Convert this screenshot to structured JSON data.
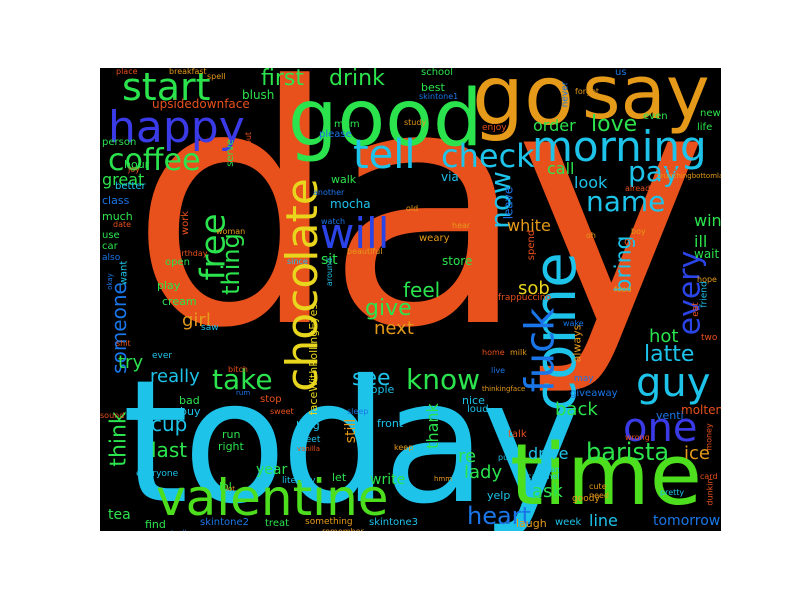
{
  "word_cloud": {
    "words": [
      {
        "text": "day",
        "color": "#e8501c"
      },
      {
        "text": "today",
        "color": "#1ec3ea"
      },
      {
        "text": "time",
        "color": "#4ddf1e"
      },
      {
        "text": "good",
        "color": "#2be34d"
      },
      {
        "text": "go",
        "color": "#e69a1a"
      },
      {
        "text": "say",
        "color": "#e69a1a"
      },
      {
        "text": "valentine",
        "color": "#4ddf1e"
      },
      {
        "text": "come",
        "color": "#1ec3ea"
      },
      {
        "text": "chocolate",
        "color": "#e8d51e"
      },
      {
        "text": "happy",
        "color": "#3a3ae6"
      },
      {
        "text": "start",
        "color": "#2be34d"
      },
      {
        "text": "morning",
        "color": "#1ec3ea"
      },
      {
        "text": "tell",
        "color": "#1ec3ea"
      },
      {
        "text": "check",
        "color": "#1ec3ea"
      },
      {
        "text": "will",
        "color": "#2a44e8"
      },
      {
        "text": "coffee",
        "color": "#2be34d"
      },
      {
        "text": "fuck",
        "color": "#1a76e8"
      },
      {
        "text": "guy",
        "color": "#1ec3ea"
      },
      {
        "text": "one",
        "color": "#3a3ae6"
      },
      {
        "text": "free",
        "color": "#2be34d"
      },
      {
        "text": "pay",
        "color": "#1ec3ea"
      },
      {
        "text": "name",
        "color": "#1ec3ea"
      },
      {
        "text": "now",
        "color": "#1ec3ea"
      },
      {
        "text": "every",
        "color": "#2a44e8"
      },
      {
        "text": "take",
        "color": "#2be34d"
      },
      {
        "text": "know",
        "color": "#2be34d"
      },
      {
        "text": "barista",
        "color": "#2be34d"
      },
      {
        "text": "heart",
        "color": "#1a76e8"
      },
      {
        "text": "give",
        "color": "#2be34d"
      },
      {
        "text": "thing",
        "color": "#2be34d"
      },
      {
        "text": "first",
        "color": "#2be34d"
      },
      {
        "text": "drink",
        "color": "#2be34d"
      },
      {
        "text": "bring",
        "color": "#1ec3ea"
      },
      {
        "text": "latte",
        "color": "#1ec3ea"
      },
      {
        "text": "love",
        "color": "#2be34d"
      },
      {
        "text": "feel",
        "color": "#2be34d"
      },
      {
        "text": "sob",
        "color": "#e8d51e"
      },
      {
        "text": "girl",
        "color": "#e69a1a"
      },
      {
        "text": "next",
        "color": "#e69a1a"
      },
      {
        "text": "see",
        "color": "#1ec3ea"
      },
      {
        "text": "cup",
        "color": "#1ec3ea"
      },
      {
        "text": "last",
        "color": "#2be34d"
      },
      {
        "text": "think",
        "color": "#2be34d"
      },
      {
        "text": "someone",
        "color": "#1a76e8"
      },
      {
        "text": "try",
        "color": "#2be34d"
      },
      {
        "text": "back",
        "color": "#2be34d"
      },
      {
        "text": "re",
        "color": "#2be34d"
      },
      {
        "text": "lady",
        "color": "#2be34d"
      },
      {
        "text": "drive",
        "color": "#1ec3ea"
      },
      {
        "text": "ask",
        "color": "#2be34d"
      },
      {
        "text": "line",
        "color": "#1ec3ea"
      },
      {
        "text": "ice",
        "color": "#e69a1a"
      },
      {
        "text": "hot",
        "color": "#2be34d"
      },
      {
        "text": "really",
        "color": "#1ec3ea"
      },
      {
        "text": "white",
        "color": "#e69a1a"
      },
      {
        "text": "order",
        "color": "#2be34d"
      },
      {
        "text": "call",
        "color": "#2be34d"
      },
      {
        "text": "look",
        "color": "#1ec3ea"
      },
      {
        "text": "great",
        "color": "#2be34d"
      },
      {
        "text": "tomorrow",
        "color": "#1a76e8"
      },
      {
        "text": "tea",
        "color": "#2be34d"
      },
      {
        "text": "write",
        "color": "#2be34d"
      },
      {
        "text": "year",
        "color": "#2be34d"
      },
      {
        "text": "sit",
        "color": "#2be34d"
      },
      {
        "text": "win",
        "color": "#2be34d"
      },
      {
        "text": "ill",
        "color": "#2be34d"
      },
      {
        "text": "wait",
        "color": "#2be34d"
      },
      {
        "text": "upsidedownface",
        "color": "#e8501c"
      },
      {
        "text": "blush",
        "color": "#2be34d"
      },
      {
        "text": "class",
        "color": "#1a76e8"
      },
      {
        "text": "walk",
        "color": "#2be34d"
      },
      {
        "text": "mom",
        "color": "#2be34d"
      },
      {
        "text": "mocha",
        "color": "#1ec3ea"
      },
      {
        "text": "via",
        "color": "#1ec3ea"
      },
      {
        "text": "store",
        "color": "#2be34d"
      },
      {
        "text": "thank",
        "color": "#2be34d"
      },
      {
        "text": "still",
        "color": "#e69a1a"
      },
      {
        "text": "skintone2",
        "color": "#1a76e8"
      },
      {
        "text": "skintone3",
        "color": "#1ec3ea"
      },
      {
        "text": "faceWithRollingEyes",
        "color": "#e8d51e"
      },
      {
        "text": "cream",
        "color": "#2be34d"
      },
      {
        "text": "play",
        "color": "#2be34d"
      },
      {
        "text": "molten",
        "color": "#e8501c"
      },
      {
        "text": "venti",
        "color": "#1a76e8"
      },
      {
        "text": "run",
        "color": "#2be34d"
      },
      {
        "text": "right",
        "color": "#2be34d"
      },
      {
        "text": "long",
        "color": "#1ec3ea"
      },
      {
        "text": "front",
        "color": "#1ec3ea"
      },
      {
        "text": "nice",
        "color": "#1ec3ea"
      },
      {
        "text": "people",
        "color": "#1ec3ea"
      },
      {
        "text": "always",
        "color": "#e69a1a"
      },
      {
        "text": "giveaway",
        "color": "#1a76e8"
      },
      {
        "text": "bad",
        "color": "#2be34d"
      },
      {
        "text": "buy",
        "color": "#1ec3ea"
      },
      {
        "text": "laugh",
        "color": "#e69a1a"
      },
      {
        "text": "week",
        "color": "#1ec3ea"
      },
      {
        "text": "yelp",
        "color": "#1ec3ea"
      },
      {
        "text": "find",
        "color": "#2be34d"
      },
      {
        "text": "treat",
        "color": "#2be34d"
      },
      {
        "text": "lol",
        "color": "#2be34d"
      },
      {
        "text": "hour",
        "color": "#2be34d"
      },
      {
        "text": "much",
        "color": "#2be34d"
      },
      {
        "text": "use",
        "color": "#2be34d"
      },
      {
        "text": "person",
        "color": "#2be34d"
      },
      {
        "text": "better",
        "color": "#1ec3ea"
      },
      {
        "text": "serve",
        "color": "#2be34d"
      },
      {
        "text": "school",
        "color": "#2be34d"
      },
      {
        "text": "best",
        "color": "#2be34d"
      },
      {
        "text": "leave",
        "color": "#1a76e8"
      },
      {
        "text": "spend",
        "color": "#e8501c"
      },
      {
        "text": "please",
        "color": "#1a76e8"
      },
      {
        "text": "life",
        "color": "#2be34d"
      },
      {
        "text": "even",
        "color": "#2be34d"
      },
      {
        "text": "new",
        "color": "#2be34d"
      },
      {
        "text": "us",
        "color": "#1a76e8"
      },
      {
        "text": "loud",
        "color": "#1ec3ea"
      },
      {
        "text": "talk",
        "color": "#e8501c"
      },
      {
        "text": "everyone",
        "color": "#1ec3ea"
      },
      {
        "text": "want",
        "color": "#1ec3ea"
      },
      {
        "text": "open",
        "color": "#2be34d"
      },
      {
        "text": "stop",
        "color": "#e8501c"
      },
      {
        "text": "ever",
        "color": "#1ec3ea"
      },
      {
        "text": "saw",
        "color": "#1ec3ea"
      },
      {
        "text": "work",
        "color": "#e8501c"
      },
      {
        "text": "car",
        "color": "#2be34d"
      },
      {
        "text": "also",
        "color": "#1a76e8"
      },
      {
        "text": "cry",
        "color": "#e8501c"
      },
      {
        "text": "two",
        "color": "#e8501c"
      },
      {
        "text": "frappuccino",
        "color": "#e8501c"
      },
      {
        "text": "enjoy",
        "color": "#e8501c"
      },
      {
        "text": "never",
        "color": "#1a76e8"
      },
      {
        "text": "man",
        "color": "#e8501c"
      },
      {
        "text": "something",
        "color": "#e69a1a"
      },
      {
        "text": "literally",
        "color": "#1ec3ea"
      },
      {
        "text": "meet",
        "color": "#1ec3ea"
      },
      {
        "text": "goody",
        "color": "#e69a1a"
      },
      {
        "text": "wrong",
        "color": "#e8501c"
      },
      {
        "text": "card",
        "color": "#e8501c"
      },
      {
        "text": "another",
        "color": "#1a76e8"
      },
      {
        "text": "watch",
        "color": "#1a76e8"
      },
      {
        "text": "since",
        "color": "#1ec3ea"
      },
      {
        "text": "weary",
        "color": "#e69a1a"
      },
      {
        "text": "hear",
        "color": "#e69a1a"
      },
      {
        "text": "old",
        "color": "#e69a1a"
      },
      {
        "text": "milk",
        "color": "#e69a1a"
      },
      {
        "text": "may",
        "color": "#1a76e8"
      },
      {
        "text": "home",
        "color": "#e8501c"
      },
      {
        "text": "cute",
        "color": "#e69a1a"
      },
      {
        "text": "need",
        "color": "#e69a1a"
      },
      {
        "text": "pretty",
        "color": "#1ec3ea"
      },
      {
        "text": "dunkin",
        "color": "#e8501c"
      },
      {
        "text": "hope",
        "color": "#e69a1a"
      },
      {
        "text": "friend",
        "color": "#1ec3ea"
      },
      {
        "text": "eat",
        "color": "#e8501c"
      },
      {
        "text": "food",
        "color": "#e69a1a"
      },
      {
        "text": "sound",
        "color": "#e8501c"
      },
      {
        "text": "keep",
        "color": "#e69a1a"
      },
      {
        "text": "remember",
        "color": "#e69a1a"
      },
      {
        "text": "caramel",
        "color": "#1ec3ea"
      },
      {
        "text": "beautiful",
        "color": "#e69a1a"
      },
      {
        "text": "woman",
        "color": "#e69a1a"
      },
      {
        "text": "birthday",
        "color": "#e8501c"
      },
      {
        "text": "close",
        "color": "#e8501c"
      },
      {
        "text": "without",
        "color": "#e8501c"
      },
      {
        "text": "study",
        "color": "#e69a1a"
      },
      {
        "text": "joy",
        "color": "#e8501c"
      },
      {
        "text": "already",
        "color": "#e8501c"
      },
      {
        "text": "place",
        "color": "#e8501c"
      },
      {
        "text": "breakfast",
        "color": "#e69a1a"
      },
      {
        "text": "spell",
        "color": "#e69a1a"
      },
      {
        "text": "forget",
        "color": "#e69a1a"
      },
      {
        "text": "boy",
        "color": "#e69a1a"
      },
      {
        "text": "date",
        "color": "#e8501c"
      },
      {
        "text": "oh",
        "color": "#e69a1a"
      },
      {
        "text": "bitch",
        "color": "#e8501c"
      },
      {
        "text": "shit",
        "color": "#e8501c"
      },
      {
        "text": "sweet",
        "color": "#e8501c"
      },
      {
        "text": "money",
        "color": "#e8501c"
      },
      {
        "text": "wake",
        "color": "#1a76e8"
      },
      {
        "text": "sleep",
        "color": "#1a76e8"
      },
      {
        "text": "mean",
        "color": "#1ec3ea"
      },
      {
        "text": "skintone1",
        "color": "#1a76e8"
      },
      {
        "text": "thinkingface",
        "color": "#e69a1a"
      },
      {
        "text": "put",
        "color": "#1ec3ea"
      },
      {
        "text": "actually",
        "color": "#1a76e8"
      },
      {
        "text": "okay",
        "color": "#1a76e8"
      },
      {
        "text": "vanilla",
        "color": "#e8501c"
      },
      {
        "text": "live",
        "color": "#1a76e8"
      },
      {
        "text": "rum",
        "color": "#1a76e8"
      },
      {
        "text": "around",
        "color": "#1ec3ea"
      },
      {
        "text": "lot",
        "color": "#e69a1a"
      },
      {
        "text": "hmm",
        "color": "#e69a1a"
      },
      {
        "text": "crunchingbottomlabs",
        "color": "#e69a1a"
      },
      {
        "text": "let",
        "color": "#2be34d"
      }
    ]
  }
}
